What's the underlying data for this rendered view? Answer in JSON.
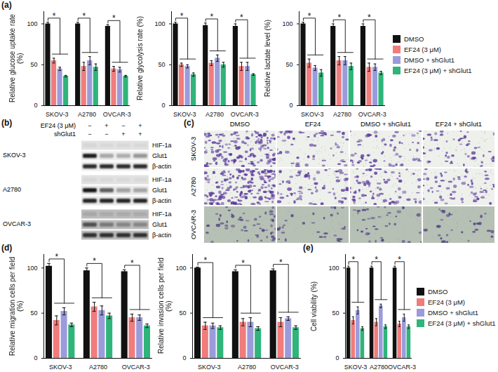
{
  "chart_data": [
    {
      "type": "bar",
      "ylabel": "Relative glucose uptake rate (%)",
      "categories": [
        "SKOV-3",
        "A2780",
        "OVCAR-3"
      ],
      "series": [
        {
          "name": "DMSO",
          "color": "#111111",
          "values": [
            100,
            100,
            97
          ],
          "errors": [
            2,
            2,
            2
          ]
        },
        {
          "name": "EF24 (3 μM)",
          "color": "#f07c7c",
          "values": [
            55,
            48,
            45
          ],
          "errors": [
            3,
            5,
            3
          ]
        },
        {
          "name": "DMSO + shGlut1",
          "color": "#9b9bdc",
          "values": [
            45,
            55,
            44
          ],
          "errors": [
            2,
            5,
            3
          ]
        },
        {
          "name": "EF24 (3 μM) + shGlut1",
          "color": "#2fb47a",
          "values": [
            36,
            47,
            36
          ],
          "errors": [
            1,
            4,
            1
          ]
        }
      ],
      "ylim": [
        0,
        115
      ],
      "yticks": [
        0,
        50,
        100
      ],
      "annotations": [
        {
          "category": "SKOV-3",
          "text": "*"
        },
        {
          "category": "A2780",
          "text": "*"
        },
        {
          "category": "OVCAR-3",
          "text": "*"
        }
      ]
    },
    {
      "type": "bar",
      "ylabel": "Relative glycolysis rate (%)",
      "categories": [
        "SKOV-3",
        "A2780",
        "OVCAR-3"
      ],
      "series": [
        {
          "name": "DMSO",
          "color": "#111111",
          "values": [
            100,
            98,
            97
          ],
          "errors": [
            2,
            3,
            3
          ]
        },
        {
          "name": "EF24 (3 μM)",
          "color": "#f07c7c",
          "values": [
            50,
            52,
            48
          ],
          "errors": [
            2,
            3,
            5
          ]
        },
        {
          "name": "DMSO + shGlut1",
          "color": "#9b9bdc",
          "values": [
            48,
            58,
            48
          ],
          "errors": [
            2,
            4,
            5
          ]
        },
        {
          "name": "EF24 (3 μM) + shGlut1",
          "color": "#2fb47a",
          "values": [
            38,
            50,
            38
          ],
          "errors": [
            2,
            3,
            1
          ]
        }
      ],
      "ylim": [
        0,
        115
      ],
      "yticks": [
        0,
        50,
        100
      ],
      "annotations": [
        {
          "category": "SKOV-3",
          "text": "*"
        },
        {
          "category": "A2780",
          "text": "*"
        },
        {
          "category": "OVCAR-3",
          "text": "*"
        }
      ]
    },
    {
      "type": "bar",
      "ylabel": "Relative lactate level (%)",
      "categories": [
        "SKOV-3",
        "A2780",
        "OVCAR-3"
      ],
      "series": [
        {
          "name": "DMSO",
          "color": "#111111",
          "values": [
            100,
            97,
            97
          ],
          "errors": [
            2,
            3,
            3
          ]
        },
        {
          "name": "EF24 (3 μM)",
          "color": "#f07c7c",
          "values": [
            52,
            55,
            47
          ],
          "errors": [
            5,
            5,
            5
          ]
        },
        {
          "name": "DMSO + shGlut1",
          "color": "#9b9bdc",
          "values": [
            46,
            55,
            47
          ],
          "errors": [
            3,
            5,
            4
          ]
        },
        {
          "name": "EF24 (3 μM) + shGlut1",
          "color": "#2fb47a",
          "values": [
            40,
            48,
            40
          ],
          "errors": [
            4,
            4,
            2
          ]
        }
      ],
      "ylim": [
        0,
        115
      ],
      "yticks": [
        0,
        50,
        100
      ],
      "legend": "right",
      "annotations": [
        {
          "category": "SKOV-3",
          "text": "*"
        },
        {
          "category": "A2780",
          "text": "*"
        },
        {
          "category": "OVCAR-3",
          "text": "*"
        }
      ]
    },
    {
      "type": "bar",
      "ylabel": "Relative migration cells per field (%)",
      "categories": [
        "SKOV-3",
        "A2780",
        "OVCAR-3"
      ],
      "series": [
        {
          "name": "DMSO",
          "color": "#111111",
          "values": [
            102,
            97,
            96
          ],
          "errors": [
            3,
            3,
            2
          ]
        },
        {
          "name": "EF24 (3 μM)",
          "color": "#f07c7c",
          "values": [
            42,
            57,
            45
          ],
          "errors": [
            5,
            5,
            4
          ]
        },
        {
          "name": "DMSO + shGlut1",
          "color": "#9b9bdc",
          "values": [
            52,
            53,
            45
          ],
          "errors": [
            4,
            5,
            3
          ]
        },
        {
          "name": "EF24 (3 μM) + shGlut1",
          "color": "#2fb47a",
          "values": [
            37,
            47,
            36
          ],
          "errors": [
            2,
            3,
            2
          ]
        }
      ],
      "ylim": [
        0,
        115
      ],
      "yticks": [
        0,
        50,
        100
      ],
      "annotations": [
        {
          "category": "SKOV-3",
          "text": "*"
        },
        {
          "category": "A2780",
          "text": "*"
        },
        {
          "category": "OVCAR-3",
          "text": "*"
        }
      ]
    },
    {
      "type": "bar",
      "ylabel": "Relative invasion cells per field (%)",
      "categories": [
        "SKOV-3",
        "A2780",
        "OVCAR-3"
      ],
      "series": [
        {
          "name": "DMSO",
          "color": "#111111",
          "values": [
            100,
            96,
            97
          ],
          "errors": [
            1,
            2,
            2
          ]
        },
        {
          "name": "EF24 (3 μM)",
          "color": "#f07c7c",
          "values": [
            36,
            40,
            40
          ],
          "errors": [
            4,
            4,
            5
          ]
        },
        {
          "name": "DMSO + shGlut1",
          "color": "#9b9bdc",
          "values": [
            36,
            40,
            44
          ],
          "errors": [
            3,
            5,
            2
          ]
        },
        {
          "name": "EF24 (3 μM) + shGlut1",
          "color": "#2fb47a",
          "values": [
            34,
            33,
            34
          ],
          "errors": [
            2,
            2,
            2
          ]
        }
      ],
      "ylim": [
        0,
        115
      ],
      "yticks": [
        0,
        50,
        100
      ],
      "annotations": [
        {
          "category": "SKOV-3",
          "text": "*"
        },
        {
          "category": "A2780",
          "text": "*"
        },
        {
          "category": "OVCAR-3",
          "text": "*"
        }
      ]
    },
    {
      "type": "bar",
      "ylabel": "Cell viability (%)",
      "categories": [
        "SKOV-3",
        "A2780",
        "OVCAR-3"
      ],
      "series": [
        {
          "name": "DMSO",
          "color": "#111111",
          "values": [
            100,
            100,
            100
          ],
          "errors": [
            2,
            2,
            2
          ]
        },
        {
          "name": "EF24 (3 μM)",
          "color": "#f07c7c",
          "values": [
            42,
            40,
            38
          ],
          "errors": [
            4,
            4,
            3
          ]
        },
        {
          "name": "DMSO + shGlut1",
          "color": "#9b9bdc",
          "values": [
            53,
            58,
            45
          ],
          "errors": [
            4,
            2,
            4
          ]
        },
        {
          "name": "EF24 (3 μM) + shGlut1",
          "color": "#2fb47a",
          "values": [
            33,
            35,
            35
          ],
          "errors": [
            2,
            2,
            2
          ]
        }
      ],
      "ylim": [
        0,
        115
      ],
      "yticks": [
        0,
        50,
        100
      ],
      "legend": "right",
      "annotations": [
        {
          "category": "SKOV-3",
          "text": "*"
        },
        {
          "category": "A2780",
          "text": "*"
        },
        {
          "category": "OVCAR-3",
          "text": "*"
        }
      ]
    }
  ],
  "panel_labels": {
    "a": "(a)",
    "b": "(b)",
    "c": "(c)",
    "d": "(d)",
    "e": "(e)"
  },
  "western_blot": {
    "treatments": [
      {
        "name": "EF24 (3 μM)",
        "signs": [
          "−",
          "+",
          "−",
          "+"
        ]
      },
      {
        "name": "shGlut1",
        "signs": [
          "−",
          "−",
          "+",
          "+"
        ]
      }
    ],
    "cell_lines": [
      "SKOV-3",
      "A2780",
      "OVCAR-3"
    ],
    "bands": [
      "HIF-1a",
      "Glut1",
      "β-actin"
    ]
  },
  "micrographs": {
    "columns": [
      "DMSO",
      "EF24",
      "DMSO + shGlut1",
      "EF24 + shGlut1"
    ],
    "rows": [
      "SKOV-3",
      "A2780",
      "OVCAR-3"
    ]
  }
}
